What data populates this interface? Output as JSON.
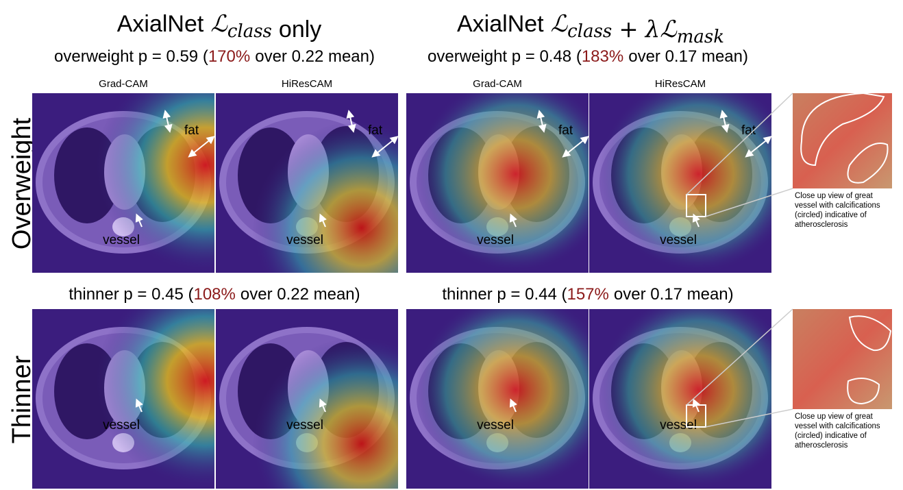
{
  "columns": [
    {
      "title": [
        {
          "text": "AxialNet"
        },
        {
          "text": "ℒ",
          "sub": "class"
        },
        {
          "text": "only"
        }
      ]
    },
    {
      "title": [
        {
          "text": "AxialNet"
        },
        {
          "text": "ℒ",
          "sub": "class"
        },
        {
          "text": "+"
        },
        {
          "text": "λℒ",
          "sub": "mask"
        }
      ]
    }
  ],
  "methods": [
    "Grad-CAM",
    "HiResCAM"
  ],
  "rows": [
    {
      "label": "Overweight",
      "scores": [
        {
          "pre": "overweight p = 0.59 (",
          "pct": "170%",
          "post": "over 0.22 mean)"
        },
        {
          "pre": "overweight p = 0.48 (",
          "pct": "183%",
          "post": "over 0.17 mean)"
        }
      ]
    },
    {
      "label": "Thinner",
      "scores": [
        {
          "pre": "thinner p = 0.45 (",
          "pct": "108%",
          "post": "over 0.22 mean)"
        },
        {
          "pre": "thinner p = 0.44 (",
          "pct": "157%",
          "post": "over 0.17 mean)"
        }
      ]
    }
  ],
  "annotations": {
    "fat": "fat",
    "vessel": "vessel"
  },
  "closeup_caption": [
    "Close up view of great",
    "vessel with calcifications",
    "(circled) indicative of",
    "atherosclerosis"
  ]
}
